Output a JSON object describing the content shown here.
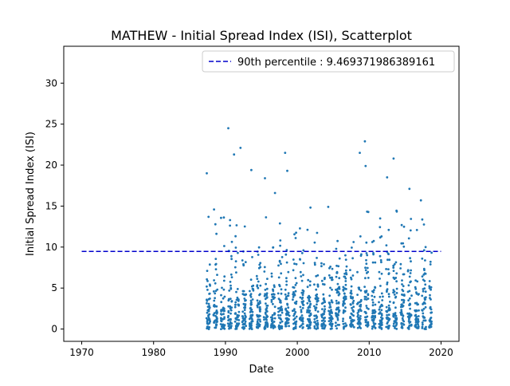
{
  "chart_data": {
    "type": "scatter",
    "title": "MATHEW - Initial Spread Index (ISI), Scatterplot",
    "xlabel": "Date",
    "ylabel": "Initial Spread Index (ISI)",
    "xlim": [
      1967.5,
      2022.5
    ],
    "ylim": [
      -1.5,
      34.5
    ],
    "xticks": [
      1970,
      1980,
      1990,
      2000,
      2010,
      2020
    ],
    "yticks": [
      0,
      5,
      10,
      15,
      20,
      25,
      30
    ],
    "grid": false,
    "legend_position": "top-right",
    "reference_line": {
      "label": "90th percentile : 9.469371986389161",
      "y": 9.469371986389161,
      "x_start": 1970,
      "x_end": 2020,
      "color": "#0000cc",
      "style": "dashed"
    },
    "series": [
      {
        "color": "#1f77b4",
        "notable_points": [
          {
            "x": 1987.4,
            "y": 19.0
          },
          {
            "x": 1990.4,
            "y": 24.5
          },
          {
            "x": 1991.2,
            "y": 21.3
          },
          {
            "x": 1992.1,
            "y": 22.1
          },
          {
            "x": 1993.6,
            "y": 19.4
          },
          {
            "x": 1998.3,
            "y": 21.5
          },
          {
            "x": 1998.6,
            "y": 19.3
          },
          {
            "x": 1996.9,
            "y": 16.6
          },
          {
            "x": 2004.3,
            "y": 14.9
          },
          {
            "x": 2008.7,
            "y": 21.5
          },
          {
            "x": 2009.4,
            "y": 22.9
          },
          {
            "x": 2009.5,
            "y": 19.9
          },
          {
            "x": 2012.5,
            "y": 18.5
          },
          {
            "x": 2013.4,
            "y": 20.8
          },
          {
            "x": 2015.6,
            "y": 17.1
          },
          {
            "x": 2017.2,
            "y": 15.7
          },
          {
            "x": 1995.5,
            "y": 18.4
          }
        ],
        "x_range": [
          1987.3,
          2018.7
        ],
        "y_range": [
          0,
          24.5
        ]
      }
    ],
    "colors": {
      "points": "#1f77b4",
      "reference_line": "#0000cc",
      "axes": "#000000"
    }
  }
}
